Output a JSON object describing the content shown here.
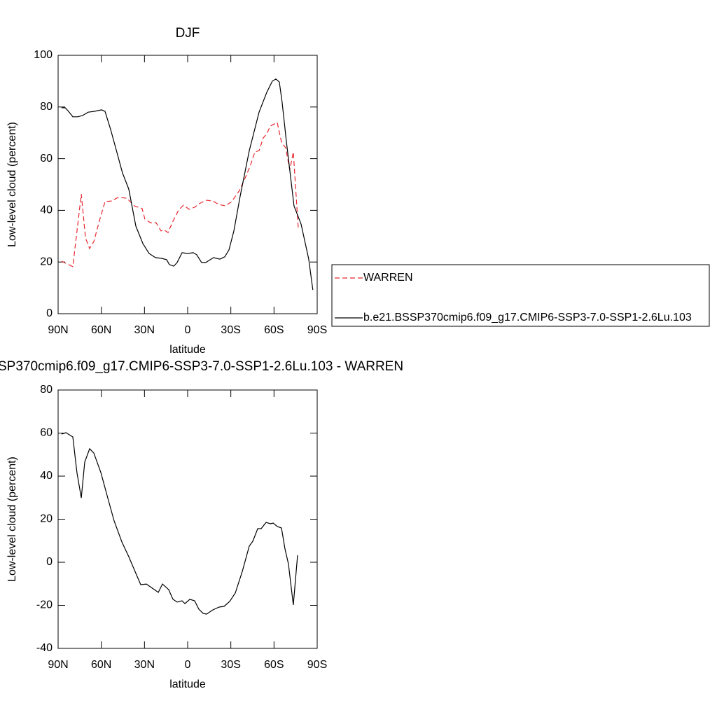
{
  "chart_data": [
    {
      "type": "line",
      "title": "DJF",
      "xlabel": "latitude",
      "ylabel": "Low-level cloud (percent)",
      "xlim": [
        90,
        -90
      ],
      "xticks": [
        {
          "value": 90,
          "label": "90N"
        },
        {
          "value": 60,
          "label": "60N"
        },
        {
          "value": 30,
          "label": "30N"
        },
        0,
        {
          "value": -30,
          "label": "30S"
        },
        {
          "value": -60,
          "label": "60S"
        },
        {
          "value": -90,
          "label": "90S"
        }
      ],
      "ylim": [
        0,
        100
      ],
      "yticks": [
        0,
        20,
        40,
        60,
        80,
        100
      ],
      "legend": "right",
      "series": [
        {
          "name": "WARREN",
          "color": "#e8272f",
          "linestyle": "dashed",
          "x": [
            87.6,
            79.8,
            73.9,
            71.0,
            68.1,
            65.2,
            61.3,
            57.4,
            53.0,
            48.2,
            42.3,
            37.0,
            31.6,
            29.7,
            25.8,
            21.9,
            18.5,
            16.6,
            13.6,
            10.2,
            6.3,
            2.9,
            -1.0,
            -4.8,
            -8.7,
            -13.1,
            -17.5,
            -21.4,
            -26.2,
            -30.6,
            -36.0,
            -40.4,
            -43.8,
            -46.7,
            -49.6,
            -52.5,
            -54.9,
            -57.4,
            -62.2,
            -65.2,
            -68.1,
            -71.0,
            -73.4,
            -76.8
          ],
          "values": [
            20.3,
            18.2,
            46.3,
            29.3,
            25.2,
            27.9,
            36.0,
            43.4,
            43.6,
            45.0,
            44.7,
            41.7,
            40.7,
            36.6,
            35.2,
            35.2,
            32.0,
            32.5,
            31.4,
            35.8,
            40.1,
            42.0,
            40.4,
            41.2,
            42.8,
            43.9,
            43.6,
            42.3,
            41.7,
            43.4,
            47.7,
            53.1,
            57.7,
            62.6,
            63.1,
            68.0,
            69.6,
            72.6,
            74.0,
            66.4,
            64.2,
            55.6,
            62.6,
            33.3
          ]
        },
        {
          "name": "b.e21.BSSP370cmip6.f09_g17.CMIP6-SSP3-7.0-SSP1-2.6Lu.103",
          "color": "#000000",
          "linestyle": "solid",
          "x": [
            87.6,
            85.1,
            83.2,
            79.8,
            76.4,
            73.0,
            69.1,
            65.2,
            59.8,
            57.4,
            53.5,
            49.1,
            45.3,
            40.9,
            36.0,
            31.1,
            26.8,
            22.4,
            18.0,
            14.6,
            12.7,
            9.7,
            7.3,
            3.9,
            0.0,
            -3.9,
            -6.3,
            -9.7,
            -12.6,
            -18.0,
            -22.4,
            -25.8,
            -28.7,
            -32.1,
            -36.5,
            -42.8,
            -49.6,
            -54.9,
            -58.8,
            -61.3,
            -63.7,
            -65.6,
            -68.6,
            -73.9,
            -78.8,
            -84.1,
            -87.0
          ],
          "values": [
            79.7,
            79.7,
            78.6,
            76.2,
            76.2,
            76.7,
            78.0,
            78.3,
            78.9,
            78.3,
            71.3,
            62.3,
            54.5,
            48.2,
            33.9,
            27.1,
            23.3,
            21.7,
            21.4,
            20.9,
            19.0,
            18.4,
            19.8,
            23.6,
            23.3,
            23.6,
            22.8,
            19.8,
            19.8,
            21.7,
            21.1,
            22.0,
            24.7,
            32.0,
            45.5,
            63.1,
            78.0,
            85.6,
            90.0,
            90.8,
            89.7,
            82.1,
            66.7,
            41.7,
            34.7,
            21.1,
            9.2
          ]
        }
      ]
    },
    {
      "type": "line",
      "title": "SP370cmip6.f09_g17.CMIP6-SSP3-7.0-SSP1-2.6Lu.103 - WARREN",
      "xlabel": "latitude",
      "ylabel": "Low-level cloud (percent)",
      "xlim": [
        90,
        -90
      ],
      "xticks": [
        {
          "value": 90,
          "label": "90N"
        },
        {
          "value": 60,
          "label": "60N"
        },
        {
          "value": 30,
          "label": "30N"
        },
        0,
        {
          "value": -30,
          "label": "30S"
        },
        {
          "value": -60,
          "label": "60S"
        },
        {
          "value": -90,
          "label": "90S"
        }
      ],
      "ylim": [
        -40,
        80
      ],
      "yticks": [
        -40,
        -20,
        0,
        20,
        40,
        60,
        80
      ],
      "series": [
        {
          "color": "#000000",
          "linestyle": "solid",
          "x": [
            87.6,
            84.6,
            79.8,
            76.9,
            73.9,
            71.5,
            68.1,
            65.2,
            60.3,
            55.5,
            51.1,
            45.7,
            40.9,
            35.5,
            32.6,
            28.7,
            23.8,
            20.4,
            17.5,
            13.2,
            10.2,
            7.3,
            3.9,
            1.9,
            -1.5,
            -4.8,
            -7.8,
            -10.7,
            -13.1,
            -17.5,
            -21.9,
            -25.3,
            -29.2,
            -33.1,
            -38.0,
            -42.8,
            -45.3,
            -48.7,
            -51.1,
            -54.5,
            -57.4,
            -59.4,
            -62.3,
            -65.2,
            -67.6,
            -70.0,
            -73.4,
            -76.4
          ],
          "values": [
            59.5,
            60.2,
            58.2,
            41.6,
            29.9,
            46.5,
            52.7,
            50.7,
            41.6,
            29.9,
            19.2,
            9.4,
            2.6,
            -5.9,
            -10.4,
            -10.1,
            -12.4,
            -14.0,
            -10.1,
            -12.7,
            -17.2,
            -18.5,
            -17.9,
            -19.2,
            -17.2,
            -17.9,
            -21.8,
            -23.7,
            -24.1,
            -22.1,
            -20.8,
            -20.5,
            -18.2,
            -14.3,
            -4.2,
            7.5,
            9.8,
            15.6,
            15.6,
            18.5,
            17.9,
            18.2,
            16.6,
            15.9,
            6.2,
            -0.7,
            -19.8,
            3.3
          ]
        }
      ]
    }
  ]
}
